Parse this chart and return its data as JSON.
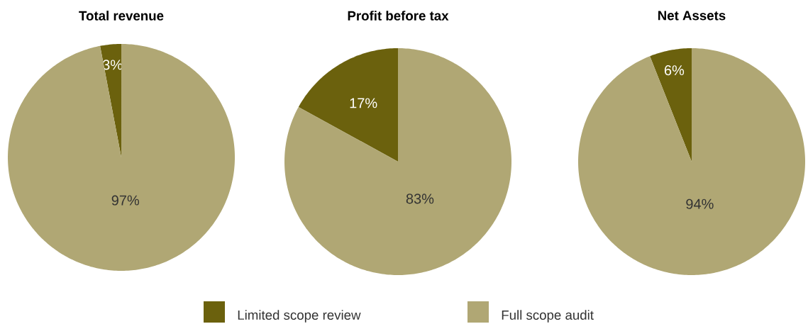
{
  "chart_data": [
    {
      "type": "pie",
      "title": "Total revenue",
      "categories": [
        "Limited scope review",
        "Full scope audit"
      ],
      "values": [
        3,
        97
      ],
      "colors": [
        "#6b610d",
        "#b0a774"
      ],
      "value_labels": [
        "3%",
        "97%"
      ],
      "legend": "bottom"
    },
    {
      "type": "pie",
      "title": "Profit before tax",
      "categories": [
        null,
        null
      ],
      "values": [
        17,
        83
      ],
      "colors": [
        "#6b610d",
        "#b0a774"
      ],
      "value_labels": [
        "17%",
        "83%"
      ]
    },
    {
      "type": "pie",
      "title": "Net Assets",
      "categories": [
        null,
        null
      ],
      "values": [
        6,
        94
      ],
      "colors": [
        "#6b610d",
        "#b0a774"
      ],
      "value_labels": [
        "6%",
        "94%"
      ]
    }
  ]
}
